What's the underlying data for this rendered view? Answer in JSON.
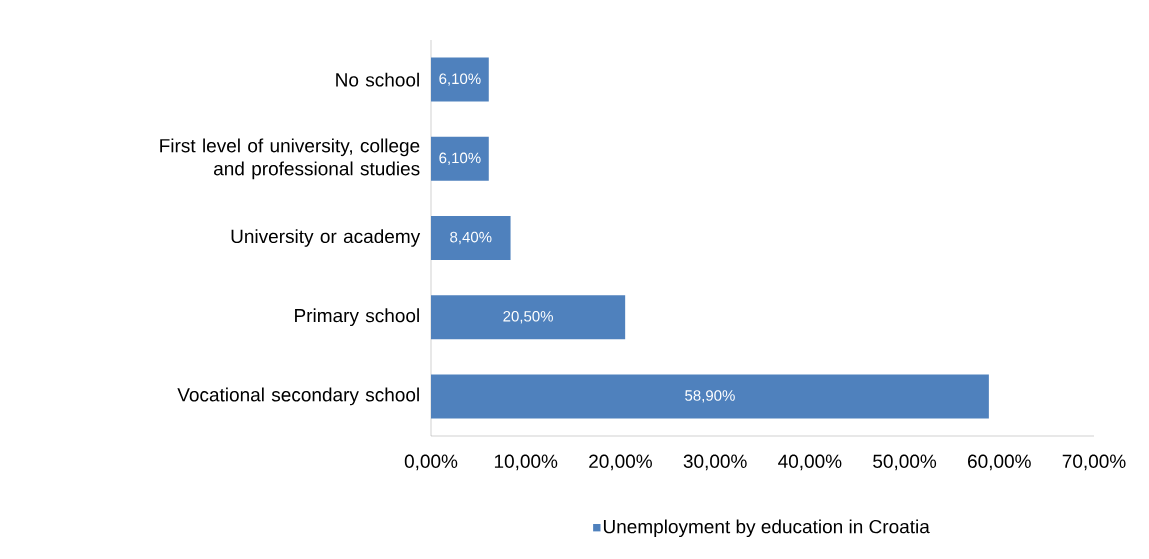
{
  "chart_data": {
    "type": "bar",
    "orientation": "horizontal",
    "categories": [
      "No school",
      "First level of university, college and professional studies",
      "University or academy",
      "Primary school",
      "Vocational secondary school"
    ],
    "series": [
      {
        "name": "Unemployment by education in Croatia",
        "color": "#4f81bd",
        "values": [
          6.1,
          6.1,
          8.4,
          20.5,
          58.9
        ],
        "value_labels": [
          "6,10%",
          "6,10%",
          "8,40%",
          "20,50%",
          "58,90%"
        ]
      }
    ],
    "xlim": [
      0,
      70
    ],
    "xticks": [
      {
        "value": 0,
        "label": "0,00%"
      },
      {
        "value": 10,
        "label": "10,00%"
      },
      {
        "value": 20,
        "label": "20,00%"
      },
      {
        "value": 30,
        "label": "30,00%"
      },
      {
        "value": 40,
        "label": "40,00%"
      },
      {
        "value": 50,
        "label": "50,00%"
      },
      {
        "value": 60,
        "label": "60,00%"
      },
      {
        "value": 70,
        "label": "70,00%"
      }
    ],
    "legend": "bottom",
    "grid": false
  }
}
